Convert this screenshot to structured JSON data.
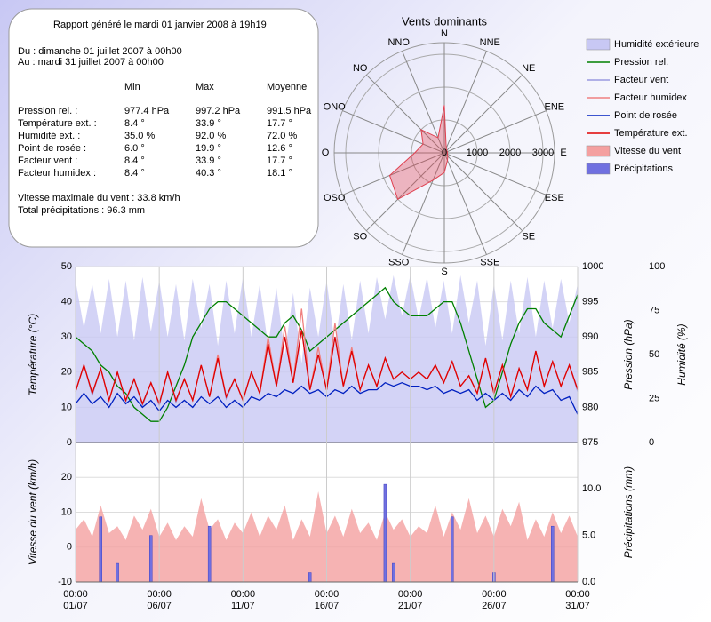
{
  "report": {
    "title": "Rapport généré le mardi 01 janvier 2008 à 19h19",
    "period": [
      "Du : dimanche 01 juillet 2007 à 00h00",
      "Au : mardi 31 juillet 2007 à 00h00"
    ],
    "columns": [
      "Min",
      "Max",
      "Moyenne"
    ],
    "rows": [
      {
        "label": "Pression rel. :",
        "cells": [
          "977.4 hPa",
          "997.2 hPa",
          "991.5 hPa"
        ]
      },
      {
        "label": "Température ext. :",
        "cells": [
          "8.4 °",
          "33.9 °",
          "17.7 °"
        ]
      },
      {
        "label": "Humidité ext. :",
        "cells": [
          "35.0 %",
          "92.0 %",
          "72.0 %"
        ]
      },
      {
        "label": "Point de rosée :",
        "cells": [
          "6.0 °",
          "19.9 °",
          "12.6 °"
        ]
      },
      {
        "label": "Facteur vent :",
        "cells": [
          "8.4 °",
          "33.9 °",
          "17.7 °"
        ]
      },
      {
        "label": "Facteur humidex :",
        "cells": [
          "8.4 °",
          "40.3 °",
          "18.1 °"
        ]
      }
    ],
    "notes": [
      "Vitesse maximale du vent : 33.8 km/h",
      "Total précipitations : 96.3 mm"
    ]
  },
  "chart_data": [
    {
      "type": "radar",
      "title": "Vents dominants",
      "categories": [
        "N",
        "NNE",
        "NE",
        "ENE",
        "E",
        "ESE",
        "SE",
        "SSE",
        "S",
        "SSO",
        "SO",
        "OSO",
        "O",
        "ONO",
        "NO",
        "NNO"
      ],
      "values": [
        1450,
        150,
        100,
        100,
        100,
        100,
        150,
        250,
        600,
        900,
        2000,
        1800,
        900,
        700,
        1000,
        500
      ],
      "rlim": [
        0,
        3000
      ],
      "rticks": [
        0,
        1000,
        2000,
        3000
      ],
      "color": "#e04050"
    },
    {
      "type": "line",
      "xlim": [
        "01/07 00:00",
        "31/07 00:00"
      ],
      "x": [
        "01/07 00:00",
        "01/07 12:00",
        "02/07 00:00",
        "02/07 12:00",
        "03/07 00:00",
        "03/07 12:00",
        "04/07 00:00",
        "04/07 12:00",
        "05/07 00:00",
        "05/07 12:00",
        "06/07 00:00",
        "06/07 12:00",
        "07/07 00:00",
        "07/07 12:00",
        "08/07 00:00",
        "08/07 12:00",
        "09/07 00:00",
        "09/07 12:00",
        "10/07 00:00",
        "10/07 12:00",
        "11/07 00:00",
        "11/07 12:00",
        "12/07 00:00",
        "12/07 12:00",
        "13/07 00:00",
        "13/07 12:00",
        "14/07 00:00",
        "14/07 12:00",
        "15/07 00:00",
        "15/07 12:00",
        "16/07 00:00",
        "16/07 12:00",
        "17/07 00:00",
        "17/07 12:00",
        "18/07 00:00",
        "18/07 12:00",
        "19/07 00:00",
        "19/07 12:00",
        "20/07 00:00",
        "20/07 12:00",
        "21/07 00:00",
        "21/07 12:00",
        "22/07 00:00",
        "22/07 12:00",
        "23/07 00:00",
        "23/07 12:00",
        "24/07 00:00",
        "24/07 12:00",
        "25/07 00:00",
        "25/07 12:00",
        "26/07 00:00",
        "26/07 12:00",
        "27/07 00:00",
        "27/07 12:00",
        "28/07 00:00",
        "28/07 12:00",
        "29/07 00:00",
        "29/07 12:00",
        "30/07 00:00",
        "30/07 12:00",
        "31/07 00:00"
      ],
      "ylabel": "Température (°C)",
      "ycolor": "#e00000",
      "ylim": [
        0,
        50
      ],
      "yticks": [
        0,
        10,
        20,
        30,
        40,
        50
      ],
      "y2label": "Pression (hPa)",
      "y2color": "#008000",
      "y2lim": [
        975,
        1000
      ],
      "y2ticks": [
        975,
        980,
        985,
        990,
        995,
        1000
      ],
      "y3label": "Humidité (%)",
      "y3color": "#b4b4ec",
      "y3lim": [
        0,
        100
      ],
      "y3ticks": [
        0,
        25,
        50,
        75,
        100
      ],
      "grid": true,
      "series": [
        {
          "name": "Humidité extérieure",
          "color": "#c8c8f4",
          "style": "area",
          "axis": "y3",
          "values": [
            92,
            65,
            90,
            62,
            93,
            60,
            92,
            58,
            94,
            63,
            92,
            60,
            90,
            58,
            93,
            65,
            90,
            55,
            92,
            62,
            94,
            60,
            90,
            55,
            88,
            50,
            85,
            45,
            88,
            60,
            92,
            55,
            90,
            58,
            92,
            62,
            94,
            70,
            95,
            72,
            95,
            70,
            94,
            65,
            92,
            62,
            95,
            68,
            92,
            55,
            90,
            58,
            92,
            62,
            94,
            60,
            92,
            65,
            93,
            68,
            90
          ]
        },
        {
          "name": "Pression rel.",
          "color": "#008000",
          "style": "line",
          "axis": "y2",
          "values": [
            990,
            989,
            988,
            986,
            985,
            983,
            982,
            980,
            979,
            978,
            978,
            980,
            983,
            986,
            990,
            992,
            994,
            995,
            995,
            994,
            993,
            992,
            991,
            990,
            990,
            992,
            993,
            991,
            988,
            989,
            990,
            991,
            992,
            993,
            994,
            995,
            996,
            997,
            995,
            994,
            993,
            993,
            993,
            994,
            995,
            995,
            992,
            988,
            984,
            980,
            981,
            985,
            989,
            992,
            994,
            994,
            992,
            991,
            990,
            993,
            996
          ]
        },
        {
          "name": "Facteur vent",
          "color": "#9a9ae0",
          "style": "line",
          "axis": "y",
          "values": [
            14.5,
            22,
            13.5,
            21,
            12,
            20,
            11.5,
            18,
            10.5,
            17,
            10.5,
            20,
            11.5,
            18,
            12,
            22,
            13,
            24,
            12.5,
            18,
            12,
            20,
            14,
            28,
            16,
            30,
            17,
            32,
            15,
            25,
            15,
            30,
            16,
            26,
            15,
            22,
            16,
            24,
            18,
            20,
            18,
            20,
            18,
            22,
            17,
            23,
            16,
            19,
            14,
            24,
            14,
            22,
            13,
            21,
            15,
            26,
            16,
            23,
            16,
            22,
            14.5
          ]
        },
        {
          "name": "Facteur humidex",
          "color": "#f08080",
          "style": "line",
          "axis": "y",
          "values": [
            14.5,
            22,
            14,
            21,
            12,
            20,
            12,
            18,
            11,
            17,
            11,
            20,
            12,
            18,
            12,
            22,
            13,
            25,
            13,
            18,
            12,
            20,
            14,
            30,
            16,
            33,
            17,
            38,
            15,
            27,
            15,
            34,
            16,
            27,
            15,
            22,
            16,
            24,
            18,
            20,
            18,
            20,
            18,
            22,
            17,
            23,
            16,
            19,
            14,
            24,
            14,
            22,
            13,
            21,
            15,
            26,
            16,
            23,
            16,
            22,
            15
          ]
        },
        {
          "name": "Point de rosée",
          "color": "#0020c0",
          "style": "line",
          "axis": "y",
          "values": [
            11,
            14,
            11,
            13,
            10,
            14,
            11,
            13,
            10,
            12,
            9,
            12,
            10,
            12,
            10,
            13,
            11,
            13,
            10,
            12,
            10,
            13,
            12,
            14,
            13,
            15,
            14,
            16,
            14,
            15,
            13,
            15,
            14,
            16,
            14,
            15,
            15,
            17,
            16,
            17,
            16,
            16,
            15,
            16,
            14,
            15,
            14,
            15,
            12,
            14,
            12,
            14,
            12,
            15,
            13,
            16,
            14,
            15,
            12,
            13,
            8
          ]
        },
        {
          "name": "Température ext.",
          "color": "#e00000",
          "style": "line",
          "axis": "y",
          "values": [
            14.5,
            22,
            14,
            21,
            12,
            20,
            12,
            18,
            11,
            17,
            11,
            20,
            12,
            18,
            12,
            22,
            13,
            24,
            13,
            18,
            12,
            20,
            14,
            28,
            16,
            30,
            17,
            32,
            15,
            25,
            15,
            30,
            16,
            26,
            15,
            22,
            16,
            24,
            18,
            20,
            18,
            20,
            18,
            22,
            17,
            23,
            16,
            19,
            14,
            24,
            14,
            22,
            13,
            21,
            15,
            26,
            16,
            23,
            16,
            22,
            15
          ]
        }
      ]
    },
    {
      "type": "line",
      "xlim": [
        "01/07 00:00",
        "31/07 00:00"
      ],
      "xticks": [
        {
          "value": "01/07 00:00",
          "label": "00:00 01/07"
        },
        {
          "value": "06/07 00:00",
          "label": "00:00 06/07"
        },
        {
          "value": "11/07 00:00",
          "label": "00:00 11/07"
        },
        {
          "value": "16/07 00:00",
          "label": "00:00 16/07"
        },
        {
          "value": "21/07 00:00",
          "label": "00:00 21/07"
        },
        {
          "value": "26/07 00:00",
          "label": "00:00 26/07"
        },
        {
          "value": "31/07 00:00",
          "label": "00:00 31/07"
        }
      ],
      "x": [
        "01/07 00:00",
        "01/07 12:00",
        "02/07 00:00",
        "02/07 12:00",
        "03/07 00:00",
        "03/07 12:00",
        "04/07 00:00",
        "04/07 12:00",
        "05/07 00:00",
        "05/07 12:00",
        "06/07 00:00",
        "06/07 12:00",
        "07/07 00:00",
        "07/07 12:00",
        "08/07 00:00",
        "08/07 12:00",
        "09/07 00:00",
        "09/07 12:00",
        "10/07 00:00",
        "10/07 12:00",
        "11/07 00:00",
        "11/07 12:00",
        "12/07 00:00",
        "12/07 12:00",
        "13/07 00:00",
        "13/07 12:00",
        "14/07 00:00",
        "14/07 12:00",
        "15/07 00:00",
        "15/07 12:00",
        "16/07 00:00",
        "16/07 12:00",
        "17/07 00:00",
        "17/07 12:00",
        "18/07 00:00",
        "18/07 12:00",
        "19/07 00:00",
        "19/07 12:00",
        "20/07 00:00",
        "20/07 12:00",
        "21/07 00:00",
        "21/07 12:00",
        "22/07 00:00",
        "22/07 12:00",
        "23/07 00:00",
        "23/07 12:00",
        "24/07 00:00",
        "24/07 12:00",
        "25/07 00:00",
        "25/07 12:00",
        "26/07 00:00",
        "26/07 12:00",
        "27/07 00:00",
        "27/07 12:00",
        "28/07 00:00",
        "28/07 12:00",
        "29/07 00:00",
        "29/07 12:00",
        "30/07 00:00",
        "30/07 12:00",
        "31/07 00:00"
      ],
      "ylabel": "Vitesse du vent (km/h)",
      "ycolor": "#f08a8a",
      "ylim": [
        -10,
        30
      ],
      "yticks": [
        -10,
        0,
        10,
        20
      ],
      "y2label": "Précipitations (mm)",
      "y2color": "#9090e0",
      "y2lim": [
        0,
        15
      ],
      "y2ticks": [
        {
          "value": 0,
          "label": "0.0"
        },
        {
          "value": 5,
          "label": "5.0"
        },
        {
          "value": 10,
          "label": "10.0"
        }
      ],
      "grid": true,
      "series": [
        {
          "name": "Vitesse du vent",
          "color": "#f4a0a0",
          "style": "area",
          "axis": "y",
          "values": [
            5,
            8,
            3,
            12,
            4,
            6,
            2,
            9,
            5,
            11,
            3,
            7,
            2,
            6,
            3,
            14,
            5,
            8,
            2,
            7,
            4,
            10,
            3,
            9,
            5,
            12,
            2,
            8,
            3,
            16,
            4,
            9,
            3,
            11,
            4,
            7,
            2,
            10,
            5,
            8,
            3,
            6,
            4,
            12,
            3,
            10,
            5,
            14,
            4,
            9,
            3,
            11,
            6,
            13,
            2,
            8,
            3,
            10,
            4,
            9,
            3
          ]
        },
        {
          "name": "Précipitations",
          "color": "#7070e0",
          "style": "bar",
          "axis": "y2",
          "values": [
            0,
            0,
            0,
            7,
            0,
            2,
            0,
            0,
            0,
            5,
            0,
            0,
            0,
            0,
            0,
            0,
            6,
            0,
            0,
            0,
            0,
            0,
            0,
            0,
            0,
            0,
            0,
            0,
            1,
            0,
            0,
            0,
            0,
            0,
            0,
            0,
            0,
            10.5,
            2,
            0,
            0,
            0,
            0,
            0,
            0,
            7,
            0,
            0,
            0,
            0,
            1,
            0,
            0,
            0,
            0,
            0,
            0,
            6,
            0,
            0,
            0
          ]
        }
      ]
    }
  ]
}
